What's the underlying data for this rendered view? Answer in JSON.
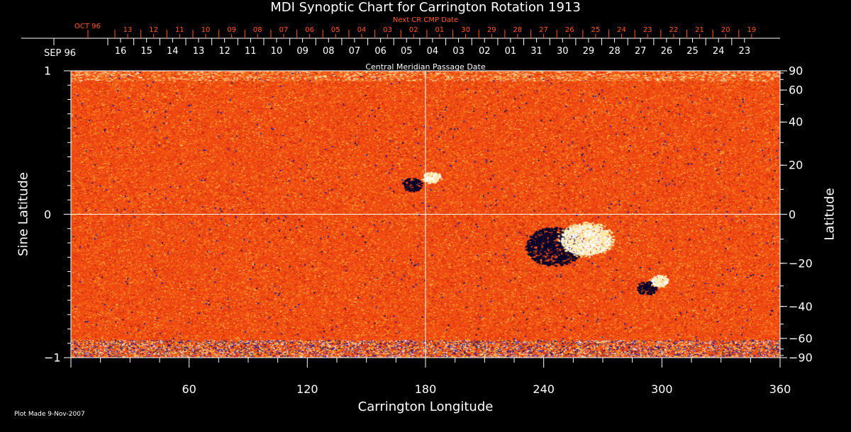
{
  "chart_data": {
    "type": "heatmap",
    "title": "MDI Synoptic Chart for Carrington Rotation 1913",
    "xlabel": "Carrington Longitude",
    "ylabel": "Sine Latitude",
    "ylabel_right": "Latitude",
    "xlim": [
      0,
      360
    ],
    "ylim": [
      -1,
      1
    ],
    "x_ticks": [
      60,
      120,
      180,
      240,
      300,
      360
    ],
    "y_ticks_left": [
      "1",
      "0",
      "−1"
    ],
    "y_ticks_left_values": [
      1,
      0,
      -1
    ],
    "y_ticks_right": [
      90,
      60,
      40,
      20,
      0,
      -20,
      -40,
      -60,
      -90
    ],
    "top_axis_label": "Central Meridian Passage Date",
    "top_axis_month": "SEP 96",
    "top_axis_dates": [
      "16",
      "15",
      "14",
      "13",
      "12",
      "11",
      "10",
      "09",
      "08",
      "07",
      "06",
      "05",
      "04",
      "03",
      "02",
      "01",
      "31",
      "30",
      "29",
      "28",
      "27",
      "26",
      "25",
      "24",
      "23"
    ],
    "next_cr_label": "Next CR CMP Date",
    "next_cr_month": "OCT 96",
    "next_cr_dates": [
      "13",
      "12",
      "11",
      "10",
      "09",
      "08",
      "07",
      "06",
      "05",
      "04",
      "03",
      "02",
      "01",
      "30",
      "29",
      "28",
      "27",
      "26",
      "25",
      "24",
      "23",
      "22",
      "21",
      "20",
      "19"
    ],
    "features": [
      {
        "name": "active region bipole",
        "longitude": [
          240,
          265
        ],
        "latitude": [
          -5,
          -15
        ]
      },
      {
        "name": "small bipole",
        "longitude": [
          170,
          185
        ],
        "latitude": [
          10,
          20
        ]
      },
      {
        "name": "small bipole",
        "longitude": [
          290,
          300
        ],
        "latitude": [
          -25,
          -30
        ]
      }
    ],
    "colors": {
      "background": "#ff4a10",
      "positive": "#ffffff",
      "negative": "#10106a"
    }
  },
  "footer": {
    "plot_made": "Plot Made  9-Nov-2007"
  }
}
